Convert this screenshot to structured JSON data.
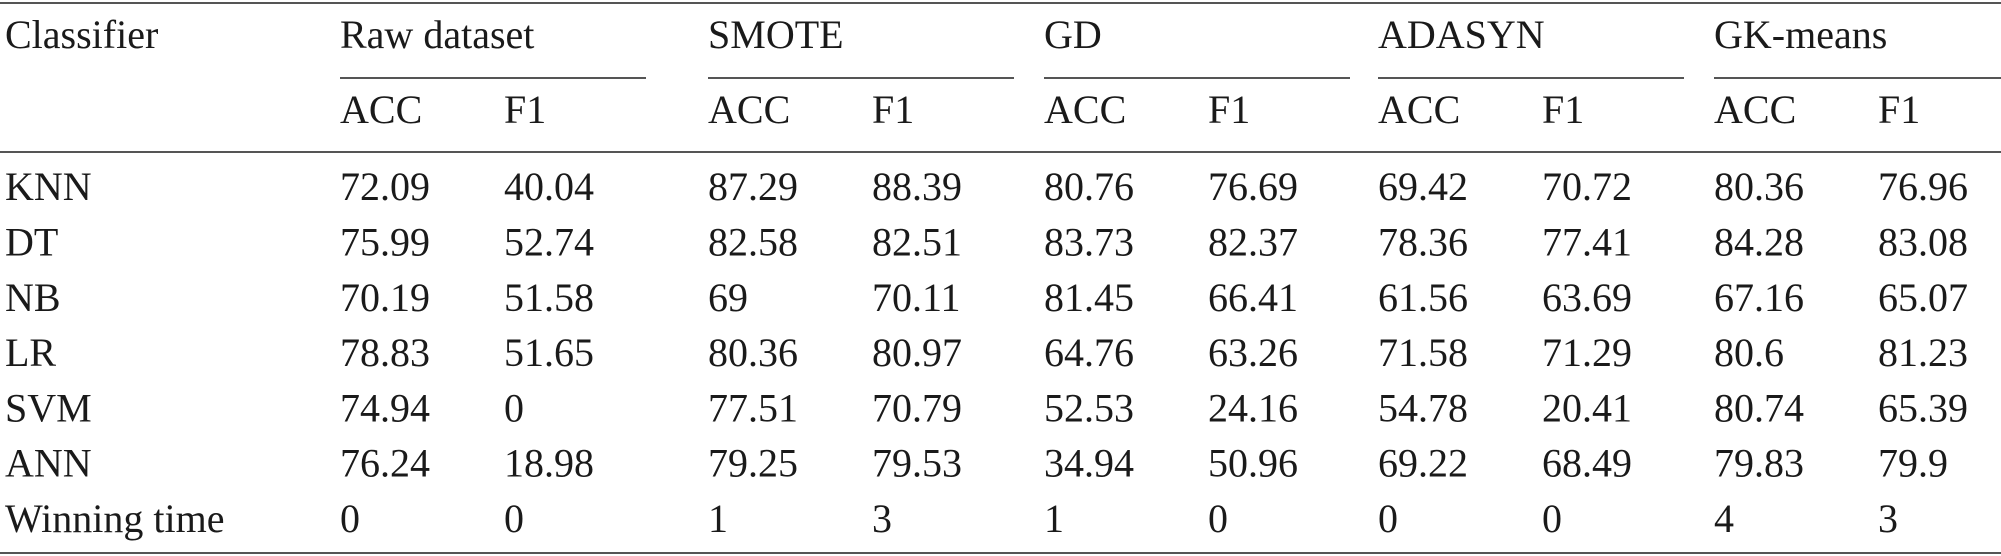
{
  "table": {
    "header": {
      "first": "Classifier",
      "groups": [
        "Raw dataset",
        "SMOTE",
        "GD",
        "ADASYN",
        "GK-means"
      ],
      "subheaders": [
        [
          "ACC",
          "F1"
        ],
        [
          "ACC",
          "F1"
        ],
        [
          "ACC",
          "F1"
        ],
        [
          "ACC",
          "F1"
        ],
        [
          "ACC",
          "F1"
        ]
      ]
    },
    "rows": [
      {
        "label": "KNN",
        "values": [
          72.09,
          40.04,
          87.29,
          88.39,
          80.76,
          76.69,
          69.42,
          70.72,
          80.36,
          76.96
        ]
      },
      {
        "label": "DT",
        "values": [
          75.99,
          52.74,
          82.58,
          82.51,
          83.73,
          82.37,
          78.36,
          77.41,
          84.28,
          83.08
        ]
      },
      {
        "label": "NB",
        "values": [
          70.19,
          51.58,
          69,
          70.11,
          81.45,
          66.41,
          61.56,
          63.69,
          67.16,
          65.07
        ]
      },
      {
        "label": "LR",
        "values": [
          78.83,
          51.65,
          80.36,
          80.97,
          64.76,
          63.26,
          71.58,
          71.29,
          80.6,
          81.23
        ]
      },
      {
        "label": "SVM",
        "values": [
          74.94,
          0,
          77.51,
          70.79,
          52.53,
          24.16,
          54.78,
          20.41,
          80.74,
          65.39
        ]
      },
      {
        "label": "ANN",
        "values": [
          76.24,
          18.98,
          79.25,
          79.53,
          34.94,
          50.96,
          69.22,
          68.49,
          79.83,
          79.9
        ]
      },
      {
        "label": "Winning time",
        "values": [
          0,
          0,
          1,
          3,
          1,
          0,
          0,
          0,
          4,
          3
        ]
      }
    ]
  }
}
